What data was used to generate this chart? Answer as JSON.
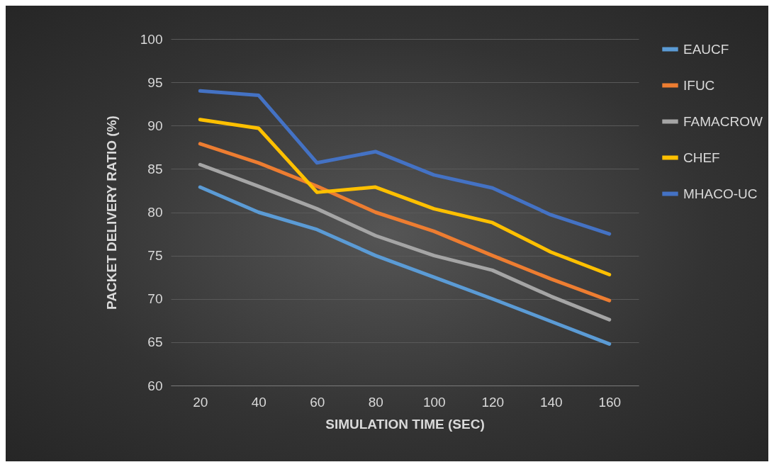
{
  "chart_data": {
    "type": "line",
    "xlabel": "SIMULATION TIME (SEC)",
    "ylabel": "PACKET DELIVERY RATIO (%)",
    "categories": [
      "20",
      "40",
      "60",
      "80",
      "100",
      "120",
      "140",
      "160"
    ],
    "series": [
      {
        "name": "EAUCF",
        "color": "#5b9bd5",
        "values": [
          82.9,
          80,
          78,
          75,
          72.5,
          70,
          67.4,
          64.8
        ]
      },
      {
        "name": "IFUC",
        "color": "#ed7d31",
        "values": [
          87.9,
          85.7,
          83,
          80,
          77.8,
          75,
          72.3,
          69.8
        ]
      },
      {
        "name": "FAMACROW",
        "color": "#a5a5a5",
        "values": [
          85.5,
          83,
          80.4,
          77.3,
          75,
          73.3,
          70.3,
          67.6
        ]
      },
      {
        "name": "CHEF",
        "color": "#ffc000",
        "values": [
          90.7,
          89.7,
          82.3,
          82.9,
          80.4,
          78.8,
          75.4,
          72.8
        ]
      },
      {
        "name": "MHACO-UC",
        "color": "#4472c4",
        "values": [
          94,
          93.5,
          85.7,
          87,
          84.3,
          82.8,
          79.7,
          77.5
        ]
      }
    ],
    "ylim": [
      60,
      100
    ],
    "yticks": [
      60,
      65,
      70,
      75,
      80,
      85,
      90,
      95,
      100
    ],
    "grid": "y",
    "legend": "right",
    "marker": "none",
    "line_style": "solid"
  }
}
